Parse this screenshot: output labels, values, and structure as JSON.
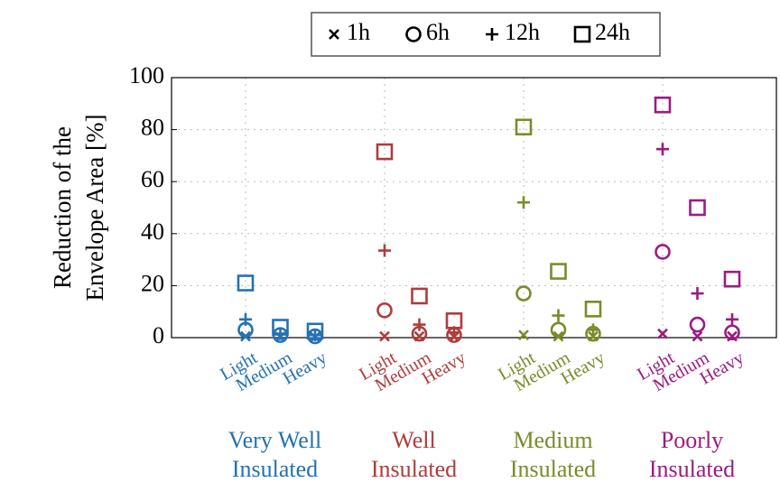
{
  "chart_data": {
    "type": "scatter",
    "ylabel": [
      "Reduction of the",
      "Envelope Area [%]"
    ],
    "categories": [
      "Light",
      "Medium",
      "Heavy",
      "Light",
      "Medium",
      "Heavy",
      "Light",
      "Medium",
      "Heavy",
      "Light",
      "Medium",
      "Heavy"
    ],
    "groups": [
      {
        "name": [
          "Very Well",
          "Insulated"
        ],
        "color": "#2471b3"
      },
      {
        "name": [
          "Well",
          "Insulated"
        ],
        "color": "#b03c3c"
      },
      {
        "name": [
          "Medium",
          "Insulated"
        ],
        "color": "#7c8a2a"
      },
      {
        "name": [
          "Poorly",
          "Insulated"
        ],
        "color": "#9b1c80"
      }
    ],
    "series": [
      {
        "name": "1h",
        "marker": "x",
        "values": [
          0.5,
          0.3,
          0.2,
          0.5,
          0.5,
          0.3,
          1,
          0.5,
          0.5,
          1.5,
          0.5,
          0.5
        ]
      },
      {
        "name": "6h",
        "marker": "circle",
        "values": [
          3,
          1,
          0.5,
          10.5,
          1.5,
          1,
          17,
          3,
          1.5,
          33,
          5,
          2
        ]
      },
      {
        "name": "12h",
        "marker": "plus",
        "values": [
          7,
          1.5,
          1,
          33.5,
          5,
          2,
          52,
          8.5,
          3,
          72.5,
          17,
          7
        ]
      },
      {
        "name": "24h",
        "marker": "square",
        "values": [
          21,
          4,
          2.5,
          71.5,
          16,
          6.5,
          81,
          25.5,
          11,
          89.5,
          50,
          22.5
        ]
      }
    ],
    "ylim": [
      0,
      100
    ],
    "yticks": [
      0,
      20,
      40,
      60,
      80,
      100
    ],
    "grid": true
  }
}
